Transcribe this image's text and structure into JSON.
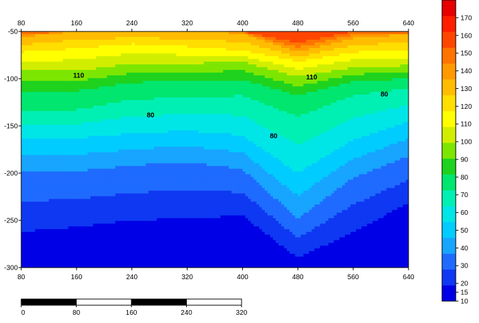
{
  "chart_data": {
    "type": "heatmap",
    "subtype": "filled-contour",
    "title": "",
    "xlabel": "",
    "ylabel": "",
    "x_ticks": [
      80,
      160,
      240,
      320,
      400,
      480,
      560,
      640
    ],
    "y_ticks": [
      -50,
      -100,
      -150,
      -200,
      -250,
      -300
    ],
    "xlim": [
      80,
      640
    ],
    "ylim": [
      -300,
      -50
    ],
    "grid": false,
    "contour_step": 10,
    "contour_labels": [
      {
        "text": "110",
        "x": 163,
        "y": -96
      },
      {
        "text": "110",
        "x": 500,
        "y": -98
      },
      {
        "text": "80",
        "x": 267,
        "y": -138
      },
      {
        "text": "80",
        "x": 605,
        "y": -116
      },
      {
        "text": "80",
        "x": 445,
        "y": -160
      }
    ],
    "colorbar": {
      "ticks": [
        170,
        160,
        150,
        140,
        130,
        120,
        110,
        100,
        90,
        80,
        70,
        60,
        50,
        40,
        30,
        20,
        15,
        10
      ],
      "range": [
        10,
        180
      ],
      "colors": [
        "#0000e6",
        "#0f38f2",
        "#1f6bff",
        "#17a5ff",
        "#00ccff",
        "#00e6e6",
        "#00f0b4",
        "#00e66e",
        "#1ed21e",
        "#7de600",
        "#d2ee00",
        "#ffff00",
        "#ffde00",
        "#ffbc00",
        "#ff9900",
        "#ff7300",
        "#ff4600",
        "#ff1e00",
        "#e60000"
      ]
    },
    "scale_bar": {
      "labels": [
        "0",
        "80",
        "160",
        "240",
        "320"
      ]
    },
    "field_profiles": {
      "x": [
        80,
        160,
        240,
        320,
        400,
        480,
        560,
        640
      ],
      "depth_of_value": {
        "170": [
          -50,
          -50,
          -50,
          -50,
          -50,
          -62,
          -50,
          -50
        ],
        "150": [
          -56,
          -50,
          -50,
          -50,
          -52,
          -72,
          -57,
          -53
        ],
        "130": [
          -72,
          -68,
          -63,
          -66,
          -70,
          -82,
          -72,
          -70
        ],
        "110": [
          -92,
          -92,
          -84,
          -84,
          -82,
          -98,
          -88,
          -86
        ],
        "90": [
          -115,
          -113,
          -104,
          -103,
          -101,
          -118,
          -103,
          -100
        ],
        "80": [
          -133,
          -133,
          -122,
          -120,
          -118,
          -140,
          -118,
          -110
        ],
        "60": [
          -163,
          -163,
          -158,
          -155,
          -160,
          -200,
          -165,
          -145
        ],
        "40": [
          -198,
          -198,
          -192,
          -188,
          -196,
          -248,
          -205,
          -182
        ],
        "20": [
          -262,
          -257,
          -250,
          -248,
          -245,
          -290,
          -262,
          -232
        ],
        "10": [
          -300,
          -300,
          -300,
          -290,
          -275,
          -300,
          -300,
          -280
        ]
      }
    }
  }
}
